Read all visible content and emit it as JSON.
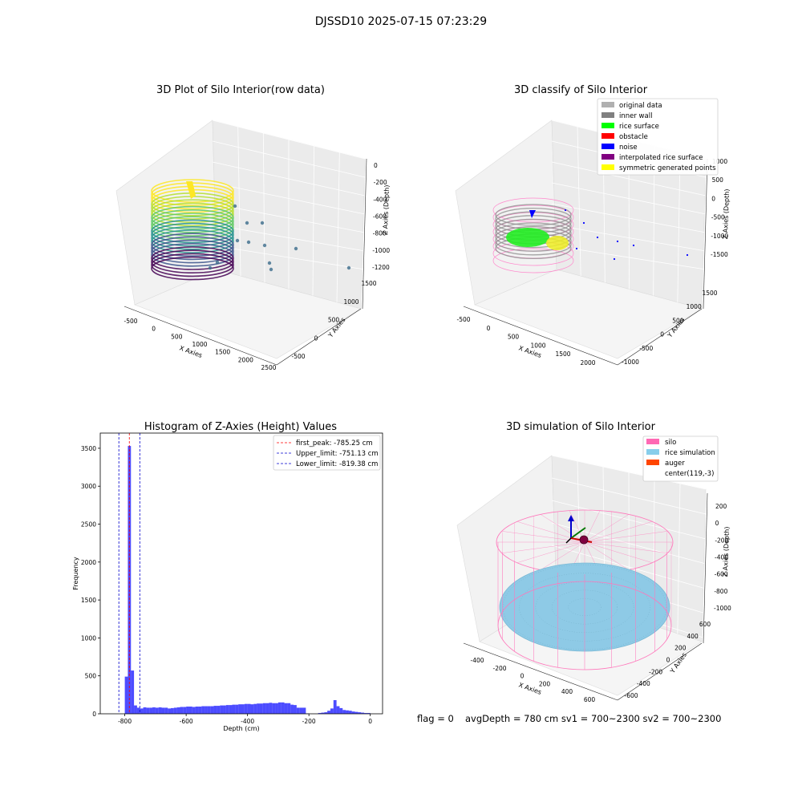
{
  "suptitle": "DJSSD10 2025-07-15 07:23:29",
  "panels": {
    "raw": {
      "title": "3D Plot of Silo Interior(row data)",
      "x_label": "X Axies",
      "y_label": "Y Axies",
      "z_label": "Z Axies (Depth)",
      "x_ticks": [
        "-500",
        "0",
        "500",
        "1000",
        "1500",
        "2000",
        "2500"
      ],
      "y_ticks": [
        "1500",
        "1000",
        "500",
        "0",
        "-500"
      ],
      "z_ticks": [
        "0",
        "-200",
        "-400",
        "-600",
        "-800",
        "-1000",
        "-1200"
      ]
    },
    "classify": {
      "title": "3D classify of Silo Interior",
      "x_label": "X Axies",
      "y_label": "Y Axies",
      "z_label": "Z Axies (Depth)",
      "x_ticks": [
        "-500",
        "0",
        "500",
        "1000",
        "1500",
        "2000"
      ],
      "y_ticks": [
        "1500",
        "1000",
        "500",
        "0",
        "-500",
        "-1000"
      ],
      "z_ticks": [
        "1000",
        "500",
        "0",
        "-500",
        "-1000",
        "-1500"
      ],
      "legend": [
        {
          "label": "original data",
          "color": "#b0b0b0"
        },
        {
          "label": "inner wall",
          "color": "#808080"
        },
        {
          "label": "rice surface",
          "color": "#00ff00"
        },
        {
          "label": "obstacle",
          "color": "#ff0000"
        },
        {
          "label": "noise",
          "color": "#0000ff"
        },
        {
          "label": "interpolated rice surface",
          "color": "#800080"
        },
        {
          "label": "symmetric generated points",
          "color": "#ffff00"
        }
      ]
    },
    "histogram": {
      "title": "Histogram of Z-Axies (Height) Values",
      "x_label": "Depth (cm)",
      "y_label": "Frequency",
      "x_ticks": [
        "-800",
        "-600",
        "-400",
        "-200",
        "0"
      ],
      "y_ticks": [
        "0",
        "500",
        "1000",
        "1500",
        "2000",
        "2500",
        "3000",
        "3500"
      ],
      "legend": [
        {
          "label": "first_peak: -785.25 cm",
          "color": "#ff0000"
        },
        {
          "label": "Upper_limit: -751.13 cm",
          "color": "#0000cc"
        },
        {
          "label": "Lower_limit: -819.38 cm",
          "color": "#0000cc"
        }
      ]
    },
    "simulation": {
      "title": "3D simulation of Silo Interior",
      "x_label": "X Axies",
      "y_label": "Y Axies",
      "z_label": "Z Axies (Depth)",
      "x_ticks": [
        "-400",
        "-200",
        "0",
        "200",
        "400",
        "600"
      ],
      "y_ticks": [
        "600",
        "400",
        "200",
        "0",
        "-200",
        "-400",
        "-600"
      ],
      "z_ticks": [
        "200",
        "0",
        "-200",
        "-400",
        "-600",
        "-800",
        "-1000"
      ],
      "legend": [
        {
          "label": "silo",
          "color": "#ff69b4"
        },
        {
          "label": "rice simulation",
          "color": "#87ceeb"
        },
        {
          "label": "auger",
          "color": "#ff4500"
        },
        {
          "label": "center(119,-3)",
          "color": ""
        }
      ]
    }
  },
  "footer": {
    "flag": "flag = 0",
    "stats": "avgDepth = 780 cm  sv1 = 700~2300  sv2 = 700~2300"
  },
  "chart_data": [
    {
      "type": "scatter",
      "title": "3D Plot of Silo Interior(row data)",
      "xlabel": "X Axies",
      "ylabel": "Y Axies",
      "zlabel": "Z Axies (Depth)",
      "xlim": [
        -700,
        2600
      ],
      "ylim": [
        -600,
        1600
      ],
      "zlim": [
        -1300,
        50
      ],
      "colormap": "viridis"
    },
    {
      "type": "scatter",
      "title": "3D classify of Silo Interior",
      "xlabel": "X Axies",
      "ylabel": "Y Axies",
      "zlabel": "Z Axies (Depth)",
      "xlim": [
        -700,
        2300
      ],
      "ylim": [
        -1100,
        1600
      ],
      "zlim": [
        -1800,
        1200
      ],
      "legend_position": "top-right",
      "series": [
        {
          "name": "original data"
        },
        {
          "name": "inner wall"
        },
        {
          "name": "rice surface"
        },
        {
          "name": "obstacle"
        },
        {
          "name": "noise"
        },
        {
          "name": "interpolated rice surface"
        },
        {
          "name": "symmetric generated points"
        }
      ]
    },
    {
      "type": "bar",
      "title": "Histogram of Z-Axies (Height) Values",
      "xlabel": "Depth (cm)",
      "ylabel": "Frequency",
      "xlim": [
        -880,
        40
      ],
      "ylim": [
        0,
        3700
      ],
      "bar_color": "#0000ff",
      "legend_position": "top-right",
      "bin_starts": [
        -800,
        -790,
        -780,
        -770,
        -760,
        -750,
        -740,
        -730,
        -720,
        -710,
        -700,
        -690,
        -680,
        -670,
        -660,
        -650,
        -640,
        -630,
        -620,
        -610,
        -600,
        -590,
        -580,
        -570,
        -560,
        -550,
        -540,
        -530,
        -520,
        -510,
        -500,
        -490,
        -480,
        -470,
        -460,
        -450,
        -440,
        -430,
        -420,
        -410,
        -400,
        -390,
        -380,
        -370,
        -360,
        -350,
        -340,
        -330,
        -320,
        -310,
        -300,
        -290,
        -280,
        -270,
        -260,
        -250,
        -240,
        -230,
        -220,
        -210,
        -200,
        -190,
        -180,
        -170,
        -160,
        -150,
        -140,
        -130,
        -120,
        -110,
        -100,
        -90,
        -80,
        -70,
        -60,
        -50,
        -40,
        -30,
        -20,
        -10
      ],
      "bin_width": 10,
      "values": [
        490,
        3530,
        570,
        110,
        80,
        70,
        85,
        80,
        80,
        85,
        80,
        85,
        80,
        80,
        70,
        75,
        80,
        85,
        90,
        90,
        95,
        95,
        90,
        95,
        95,
        100,
        100,
        100,
        100,
        105,
        105,
        110,
        110,
        115,
        115,
        120,
        120,
        125,
        125,
        130,
        130,
        125,
        130,
        135,
        135,
        140,
        140,
        145,
        140,
        140,
        150,
        150,
        140,
        140,
        120,
        115,
        80,
        80,
        80,
        5,
        0,
        0,
        0,
        10,
        15,
        20,
        40,
        70,
        180,
        100,
        75,
        50,
        45,
        40,
        30,
        25,
        20,
        15,
        10,
        10
      ],
      "vlines": [
        {
          "name": "first_peak",
          "x": -785.25,
          "color": "#ff0000"
        },
        {
          "name": "Upper_limit",
          "x": -751.13,
          "color": "#0000cc"
        },
        {
          "name": "Lower_limit",
          "x": -819.38,
          "color": "#0000cc"
        }
      ]
    },
    {
      "type": "scatter",
      "title": "3D simulation of Silo Interior",
      "xlabel": "X Axies",
      "ylabel": "Y Axies",
      "zlabel": "Z Axies (Depth)",
      "xlim": [
        -500,
        700
      ],
      "ylim": [
        -700,
        700
      ],
      "zlim": [
        -1050,
        300
      ],
      "legend_position": "top-right",
      "series": [
        {
          "name": "silo"
        },
        {
          "name": "rice simulation"
        },
        {
          "name": "auger"
        }
      ]
    }
  ]
}
